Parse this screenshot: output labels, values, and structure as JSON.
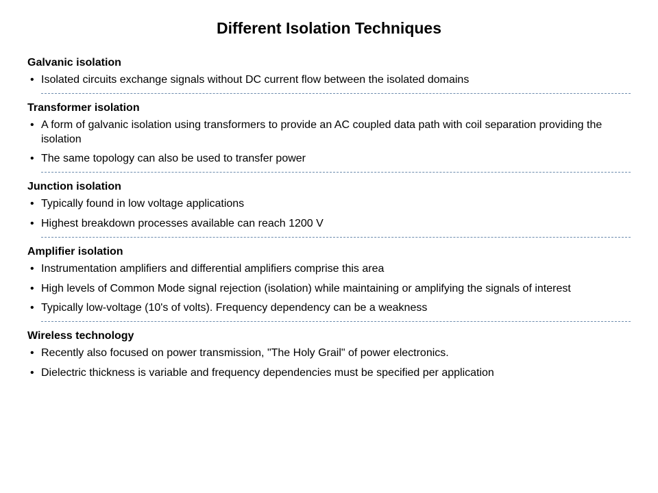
{
  "title": "Different Isolation Techniques",
  "sections": [
    {
      "heading": "Galvanic isolation",
      "bullets": [
        "Isolated circuits exchange signals without DC current flow between the isolated domains"
      ]
    },
    {
      "heading": "Transformer isolation",
      "bullets": [
        "A form of galvanic isolation using transformers to provide an AC coupled data path with coil separation providing the isolation",
        "The same topology can also be used to transfer power"
      ]
    },
    {
      "heading": "Junction isolation",
      "bullets": [
        "Typically found in low voltage applications",
        "Highest breakdown processes available can reach 1200 V"
      ]
    },
    {
      "heading": "Amplifier isolation",
      "bullets": [
        "Instrumentation amplifiers and differential amplifiers comprise this area",
        "High levels of Common Mode signal rejection (isolation) while maintaining or amplifying the signals of interest",
        "Typically low-voltage (10's of volts). Frequency dependency can be a weakness"
      ]
    },
    {
      "heading": "Wireless technology",
      "bullets": [
        "Recently also focused on power transmission, \"The Holy Grail\" of power electronics.",
        "Dielectric thickness is variable and frequency dependencies must be specified per application"
      ]
    }
  ],
  "styling": {
    "background_color": "#ffffff",
    "text_color": "#000000",
    "divider_color": "#6b8aad",
    "title_fontsize": 23,
    "heading_fontsize": 16,
    "body_fontsize": 16,
    "font_family": "Verdana"
  }
}
